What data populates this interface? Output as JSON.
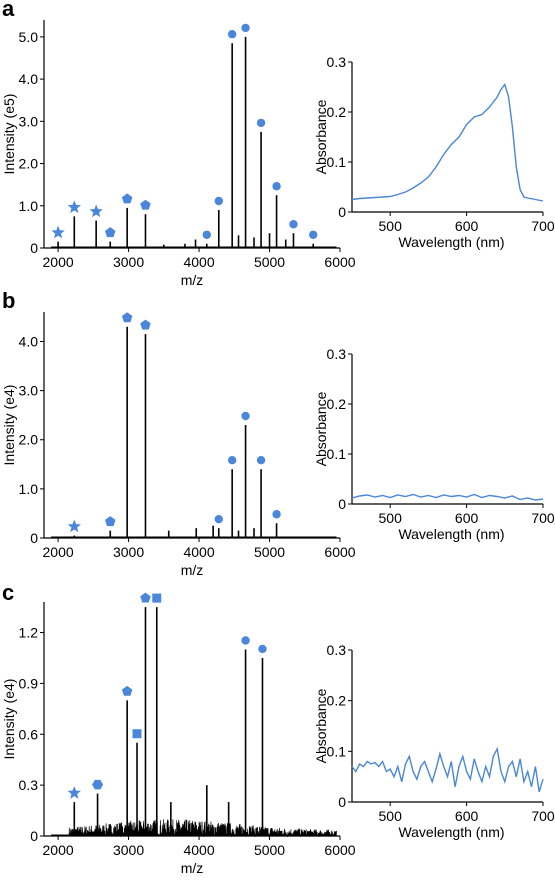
{
  "panels": [
    {
      "letter": "a",
      "ms": {
        "type": "mass_spectrum",
        "xlabel": "m/z",
        "ylabel": "Intensity (e5)",
        "xlim": [
          1800,
          6000
        ],
        "ylim": [
          0,
          5.4
        ],
        "xticks": [
          2000,
          3000,
          4000,
          5000,
          6000
        ],
        "yticks": [
          0,
          1.0,
          2.0,
          3.0,
          4.0,
          5.0
        ],
        "ytick_labels": [
          "0",
          "1.0",
          "2.0",
          "3.0",
          "4.0",
          "5.0"
        ],
        "peaks": [
          {
            "mz": 2000,
            "intensity": 0.15,
            "marker": "star"
          },
          {
            "mz": 2230,
            "intensity": 0.75,
            "marker": "star"
          },
          {
            "mz": 2540,
            "intensity": 0.65,
            "marker": "star"
          },
          {
            "mz": 2740,
            "intensity": 0.15,
            "marker": "pentagon"
          },
          {
            "mz": 2980,
            "intensity": 0.95,
            "marker": "pentagon"
          },
          {
            "mz": 3240,
            "intensity": 0.8,
            "marker": "pentagon"
          },
          {
            "mz": 4110,
            "intensity": 0.1,
            "marker": "circle"
          },
          {
            "mz": 4280,
            "intensity": 0.9,
            "marker": "circle"
          },
          {
            "mz": 4470,
            "intensity": 4.85,
            "marker": "circle"
          },
          {
            "mz": 4660,
            "intensity": 5.0,
            "marker": "circle"
          },
          {
            "mz": 4880,
            "intensity": 2.75,
            "marker": "circle"
          },
          {
            "mz": 5100,
            "intensity": 1.25,
            "marker": "circle"
          },
          {
            "mz": 5340,
            "intensity": 0.35,
            "marker": "circle"
          },
          {
            "mz": 5620,
            "intensity": 0.1,
            "marker": "circle"
          },
          {
            "mz": 3500,
            "intensity": 0.08,
            "marker": ""
          },
          {
            "mz": 3800,
            "intensity": 0.1,
            "marker": ""
          },
          {
            "mz": 3950,
            "intensity": 0.2,
            "marker": ""
          },
          {
            "mz": 4560,
            "intensity": 0.3,
            "marker": ""
          },
          {
            "mz": 4780,
            "intensity": 0.25,
            "marker": ""
          },
          {
            "mz": 5000,
            "intensity": 0.35,
            "marker": ""
          },
          {
            "mz": 5230,
            "intensity": 0.2,
            "marker": ""
          }
        ],
        "noise": 0.0
      },
      "abs": {
        "type": "line",
        "xlabel": "Wavelength (nm)",
        "ylabel": "Absorbance",
        "xlim": [
          450,
          700
        ],
        "ylim": [
          0,
          0.3
        ],
        "xticks": [
          500,
          600,
          700
        ],
        "yticks": [
          0,
          0.1,
          0.2,
          0.3
        ],
        "ytick_labels": [
          "0",
          "0.1",
          "0.2",
          "0.3"
        ],
        "x": [
          450,
          460,
          470,
          480,
          490,
          500,
          510,
          520,
          530,
          540,
          550,
          560,
          570,
          580,
          590,
          600,
          610,
          620,
          630,
          640,
          645,
          650,
          655,
          660,
          665,
          670,
          675,
          680,
          690,
          700
        ],
        "y": [
          0.025,
          0.027,
          0.028,
          0.029,
          0.03,
          0.031,
          0.035,
          0.04,
          0.048,
          0.058,
          0.07,
          0.09,
          0.115,
          0.135,
          0.15,
          0.175,
          0.19,
          0.195,
          0.21,
          0.23,
          0.245,
          0.255,
          0.23,
          0.17,
          0.09,
          0.045,
          0.03,
          0.028,
          0.025,
          0.022
        ]
      }
    },
    {
      "letter": "b",
      "ms": {
        "type": "mass_spectrum",
        "xlabel": "m/z",
        "ylabel": "Intensity (e4)",
        "xlim": [
          1800,
          6000
        ],
        "ylim": [
          0,
          4.6
        ],
        "xticks": [
          2000,
          3000,
          4000,
          5000,
          6000
        ],
        "yticks": [
          0,
          1.0,
          2.0,
          3.0,
          4.0
        ],
        "ytick_labels": [
          "0",
          "1.0",
          "2.0",
          "3.0",
          "4.0"
        ],
        "peaks": [
          {
            "mz": 2230,
            "intensity": 0.05,
            "marker": "star"
          },
          {
            "mz": 2740,
            "intensity": 0.15,
            "marker": "pentagon"
          },
          {
            "mz": 2980,
            "intensity": 4.3,
            "marker": "pentagon"
          },
          {
            "mz": 3240,
            "intensity": 4.15,
            "marker": "pentagon"
          },
          {
            "mz": 4280,
            "intensity": 0.2,
            "marker": "circle"
          },
          {
            "mz": 4470,
            "intensity": 1.4,
            "marker": "circle"
          },
          {
            "mz": 4660,
            "intensity": 2.3,
            "marker": "circle"
          },
          {
            "mz": 4880,
            "intensity": 1.4,
            "marker": "circle"
          },
          {
            "mz": 5100,
            "intensity": 0.3,
            "marker": "circle"
          },
          {
            "mz": 3570,
            "intensity": 0.15,
            "marker": ""
          },
          {
            "mz": 3960,
            "intensity": 0.2,
            "marker": ""
          },
          {
            "mz": 4200,
            "intensity": 0.25,
            "marker": ""
          },
          {
            "mz": 4560,
            "intensity": 0.15,
            "marker": ""
          },
          {
            "mz": 4780,
            "intensity": 0.2,
            "marker": ""
          }
        ],
        "noise": 0.0
      },
      "abs": {
        "type": "line",
        "xlabel": "Wavelength (nm)",
        "ylabel": "Absorbance",
        "xlim": [
          450,
          700
        ],
        "ylim": [
          0,
          0.3
        ],
        "xticks": [
          500,
          600,
          700
        ],
        "yticks": [
          0,
          0.1,
          0.2,
          0.3
        ],
        "ytick_labels": [
          "0",
          "0.1",
          "0.2",
          "0.3"
        ],
        "x": [
          450,
          460,
          470,
          480,
          490,
          500,
          510,
          520,
          530,
          540,
          550,
          560,
          570,
          580,
          590,
          600,
          610,
          620,
          630,
          640,
          650,
          660,
          670,
          680,
          690,
          700
        ],
        "y": [
          0.012,
          0.016,
          0.018,
          0.014,
          0.017,
          0.013,
          0.018,
          0.015,
          0.019,
          0.014,
          0.017,
          0.013,
          0.018,
          0.015,
          0.017,
          0.014,
          0.019,
          0.013,
          0.017,
          0.015,
          0.012,
          0.016,
          0.009,
          0.012,
          0.008,
          0.01
        ]
      }
    },
    {
      "letter": "c",
      "ms": {
        "type": "mass_spectrum",
        "xlabel": "m/z",
        "ylabel": "Intensity (e4)",
        "xlim": [
          1800,
          6000
        ],
        "ylim": [
          0,
          1.38
        ],
        "xticks": [
          2000,
          3000,
          4000,
          5000,
          6000
        ],
        "yticks": [
          0,
          0.3,
          0.6,
          0.9,
          1.2
        ],
        "ytick_labels": [
          "0",
          "0.3",
          "0.6",
          "0.9",
          "1.2"
        ],
        "peaks": [
          {
            "mz": 2230,
            "intensity": 0.2,
            "marker": "star"
          },
          {
            "mz": 2560,
            "intensity": 0.25,
            "marker": "hexagon"
          },
          {
            "mz": 2980,
            "intensity": 0.8,
            "marker": "pentagon"
          },
          {
            "mz": 3120,
            "intensity": 0.55,
            "marker": "square"
          },
          {
            "mz": 3240,
            "intensity": 1.35,
            "marker": "pentagon"
          },
          {
            "mz": 3400,
            "intensity": 1.35,
            "marker": "square"
          },
          {
            "mz": 4660,
            "intensity": 1.1,
            "marker": "circle"
          },
          {
            "mz": 4900,
            "intensity": 1.05,
            "marker": "circle"
          },
          {
            "mz": 4110,
            "intensity": 0.3,
            "marker": ""
          },
          {
            "mz": 3600,
            "intensity": 0.2,
            "marker": ""
          },
          {
            "mz": 4420,
            "intensity": 0.2,
            "marker": ""
          }
        ],
        "noise": 0.1
      },
      "abs": {
        "type": "line",
        "xlabel": "Wavelength (nm)",
        "ylabel": "Absorbance",
        "xlim": [
          450,
          700
        ],
        "ylim": [
          0,
          0.3
        ],
        "xticks": [
          500,
          600,
          700
        ],
        "yticks": [
          0,
          0.1,
          0.2,
          0.3
        ],
        "ytick_labels": [
          "0",
          "0.1",
          "0.2",
          "0.3"
        ],
        "x": [
          450,
          455,
          460,
          465,
          470,
          475,
          480,
          485,
          490,
          495,
          500,
          505,
          510,
          515,
          520,
          525,
          530,
          535,
          540,
          545,
          550,
          555,
          560,
          565,
          570,
          575,
          580,
          585,
          590,
          595,
          600,
          605,
          610,
          615,
          620,
          625,
          630,
          635,
          640,
          645,
          650,
          655,
          660,
          665,
          670,
          675,
          680,
          685,
          690,
          695,
          700
        ],
        "y": [
          0.07,
          0.06,
          0.075,
          0.07,
          0.08,
          0.075,
          0.078,
          0.07,
          0.08,
          0.06,
          0.065,
          0.05,
          0.07,
          0.04,
          0.075,
          0.09,
          0.06,
          0.045,
          0.07,
          0.08,
          0.06,
          0.04,
          0.065,
          0.095,
          0.07,
          0.05,
          0.08,
          0.03,
          0.07,
          0.09,
          0.06,
          0.045,
          0.085,
          0.06,
          0.04,
          0.07,
          0.05,
          0.09,
          0.105,
          0.06,
          0.04,
          0.07,
          0.08,
          0.05,
          0.085,
          0.04,
          0.06,
          0.03,
          0.07,
          0.02,
          0.045
        ]
      }
    }
  ],
  "colors": {
    "marker": "#4a86d9",
    "absorbance_line": "#4a86d9",
    "spectrum_line": "#000000"
  }
}
